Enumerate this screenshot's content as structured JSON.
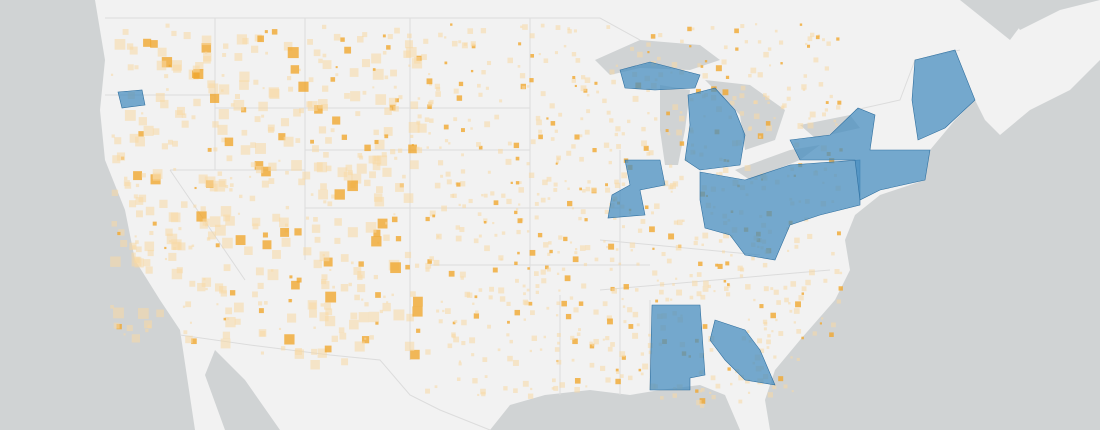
{
  "map": {
    "colors": {
      "water": "#d0d3d4",
      "land": "#f2f2f2",
      "border": "#dcdcdc",
      "highlight_region": "#4a8fc0",
      "highlight_region_dark": "#2f6f9f",
      "point_light": "#f7d9a4",
      "point_strong": "#f0a830"
    },
    "layers": [
      "base-land",
      "state-borders",
      "highlighted-counties",
      "point-density"
    ]
  }
}
